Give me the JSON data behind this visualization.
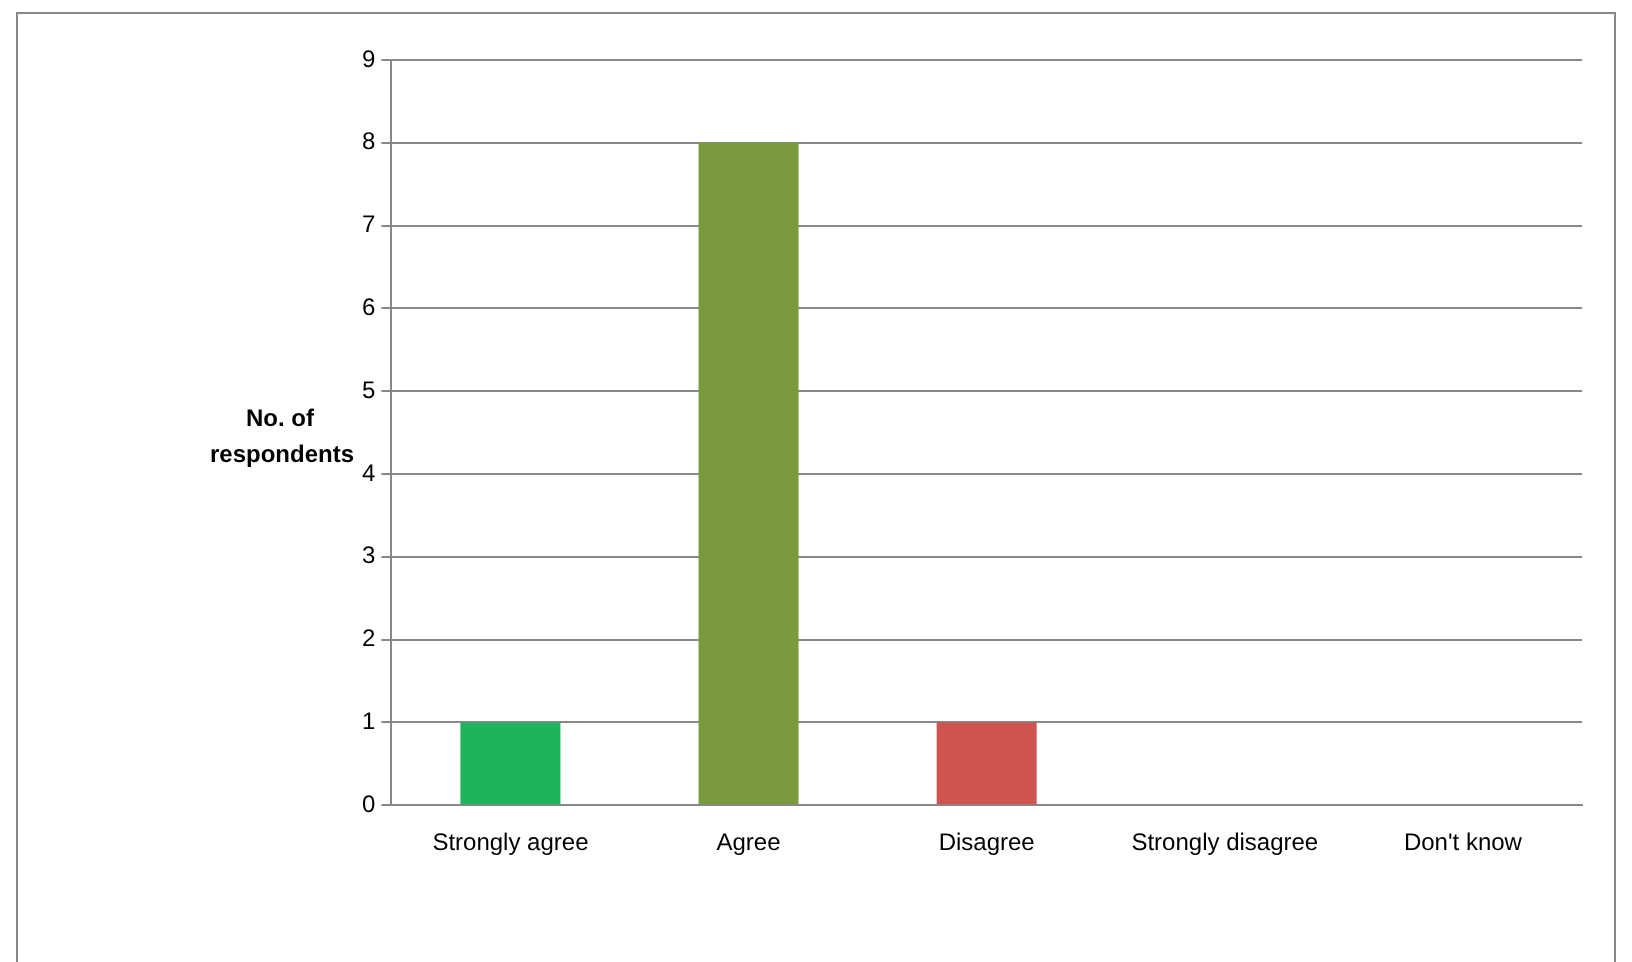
{
  "chart_data": {
    "type": "bar",
    "ylabel": "No. of respondents",
    "categories": [
      "Strongly agree",
      "Agree",
      "Disagree",
      "Strongly disagree",
      "Don't know"
    ],
    "values": [
      1,
      8,
      1,
      0,
      0
    ],
    "colors": [
      "#1fb45a",
      "#7a9a3e",
      "#cf5450",
      "#7a9a3e",
      "#7a9a3e"
    ],
    "ylim": [
      0,
      9
    ],
    "yticks": [
      0,
      1,
      2,
      3,
      4,
      5,
      6,
      7,
      8,
      9
    ],
    "grid": "y",
    "legend": false
  }
}
